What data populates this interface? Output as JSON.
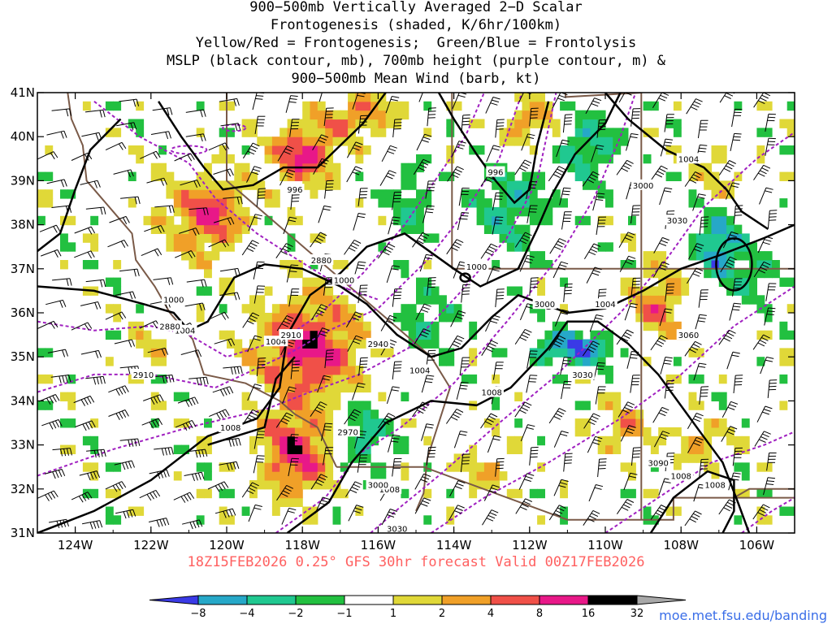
{
  "title": {
    "lines": [
      "900−500mb Vertically Averaged 2−D Scalar",
      "Frontogenesis (shaded, K/6hr/100km)",
      "Yellow/Red = Frontogenesis;  Green/Blue = Frontolysis",
      "MSLP (black contour, mb), 700mb height (purple contour, m) &",
      "900−500mb Mean Wind (barb, kt)"
    ]
  },
  "forecast_label": "18Z15FEB2026 0.25° GFS 30hr forecast Valid 00Z17FEB2026",
  "credit": "moe.met.fsu.edu/banding",
  "map": {
    "lon_range": [
      -125,
      -105
    ],
    "lat_range": [
      31,
      41
    ],
    "lon_ticks": [
      {
        "lon": -124,
        "label": "124W"
      },
      {
        "lon": -122,
        "label": "122W"
      },
      {
        "lon": -120,
        "label": "120W"
      },
      {
        "lon": -118,
        "label": "118W"
      },
      {
        "lon": -116,
        "label": "116W"
      },
      {
        "lon": -114,
        "label": "114W"
      },
      {
        "lon": -112,
        "label": "112W"
      },
      {
        "lon": -110,
        "label": "110W"
      },
      {
        "lon": -108,
        "label": "108W"
      },
      {
        "lon": -106,
        "label": "106W"
      }
    ],
    "lat_ticks": [
      {
        "lat": 41,
        "label": "41N"
      },
      {
        "lat": 40,
        "label": "40N"
      },
      {
        "lat": 39,
        "label": "39N"
      },
      {
        "lat": 38,
        "label": "38N"
      },
      {
        "lat": 37,
        "label": "37N"
      },
      {
        "lat": 36,
        "label": "36N"
      },
      {
        "lat": 35,
        "label": "35N"
      },
      {
        "lat": 34,
        "label": "34N"
      },
      {
        "lat": 33,
        "label": "33N"
      },
      {
        "lat": 32,
        "label": "32N"
      },
      {
        "lat": 31,
        "label": "31N"
      }
    ],
    "colors": {
      "mslp": "#000000",
      "height700": "#a020c0",
      "border": "#7a5a48",
      "wind": "#000000"
    },
    "mslp_labels": [
      {
        "lon": -113.4,
        "lat": 37.05,
        "text": "1000"
      },
      {
        "lon": -116.9,
        "lat": 36.75,
        "text": "1000"
      },
      {
        "lon": -118.7,
        "lat": 35.35,
        "text": "1004"
      },
      {
        "lon": -121.4,
        "lat": 36.3,
        "text": "1000"
      },
      {
        "lon": -121.1,
        "lat": 35.6,
        "text": "1004"
      },
      {
        "lon": -114.9,
        "lat": 34.7,
        "text": "1004"
      },
      {
        "lon": -113.0,
        "lat": 34.2,
        "text": "1008"
      },
      {
        "lon": -119.9,
        "lat": 33.4,
        "text": "1008"
      },
      {
        "lon": -110.0,
        "lat": 36.2,
        "text": "1004"
      },
      {
        "lon": -118.2,
        "lat": 38.8,
        "text": "996"
      },
      {
        "lon": -112.9,
        "lat": 39.2,
        "text": "996"
      },
      {
        "lon": -107.8,
        "lat": 39.5,
        "text": "1004"
      },
      {
        "lon": -115.7,
        "lat": 32.0,
        "text": "1008"
      },
      {
        "lon": -108.0,
        "lat": 32.3,
        "text": "1008"
      },
      {
        "lon": -107.1,
        "lat": 32.1,
        "text": "1008"
      }
    ],
    "height_labels": [
      {
        "lon": -117.5,
        "lat": 37.2,
        "text": "2880"
      },
      {
        "lon": -121.5,
        "lat": 35.7,
        "text": "2880"
      },
      {
        "lon": -118.3,
        "lat": 35.5,
        "text": "2910"
      },
      {
        "lon": -122.2,
        "lat": 34.6,
        "text": "2910"
      },
      {
        "lon": -116.0,
        "lat": 35.3,
        "text": "2940"
      },
      {
        "lon": -116.8,
        "lat": 33.3,
        "text": "2970"
      },
      {
        "lon": -116.0,
        "lat": 32.1,
        "text": "3000"
      },
      {
        "lon": -115.5,
        "lat": 31.1,
        "text": "3030"
      },
      {
        "lon": -111.6,
        "lat": 36.2,
        "text": "3000"
      },
      {
        "lon": -110.6,
        "lat": 34.6,
        "text": "3030"
      },
      {
        "lon": -109.0,
        "lat": 38.9,
        "text": "3000"
      },
      {
        "lon": -108.1,
        "lat": 38.1,
        "text": "3030"
      },
      {
        "lon": -107.8,
        "lat": 35.5,
        "text": "3060"
      },
      {
        "lon": -108.6,
        "lat": 32.6,
        "text": "3090"
      }
    ]
  },
  "colorbar": {
    "colors": [
      "#3a3ae6",
      "#26a8c8",
      "#20c890",
      "#22c040",
      "#ffffff",
      "#e0d838",
      "#f0a028",
      "#f05048",
      "#e81888",
      "#000000",
      "#a8a8a8"
    ],
    "labels": [
      "−8",
      "−4",
      "−2",
      "−1",
      "1",
      "2",
      "4",
      "8",
      "16",
      "32"
    ]
  }
}
